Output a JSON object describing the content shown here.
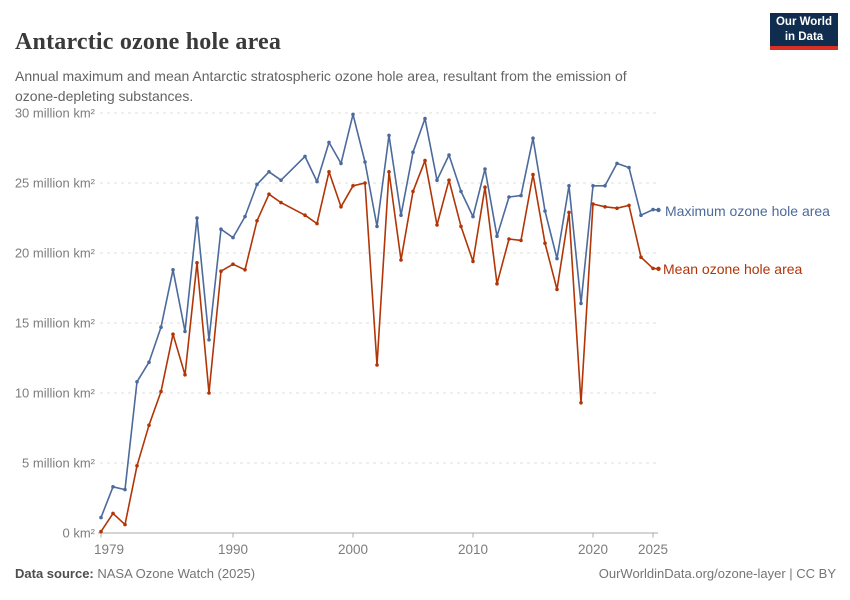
{
  "header": {
    "title": "Antarctic ozone hole area",
    "subtitle": "Annual maximum and mean Antarctic stratospheric ozone hole area, resultant from the emission of ozone-depleting substances.",
    "logo": {
      "line1": "Our World",
      "line2": "in Data",
      "bg_color": "#102D50",
      "accent_color": "#D93025"
    }
  },
  "chart_data": {
    "type": "line",
    "title": "Antarctic ozone hole area",
    "xlabel": "",
    "ylabel": "ozone hole area",
    "xlim": [
      1979,
      2025
    ],
    "ylim": [
      0,
      30
    ],
    "grid": "horizontal-dashed",
    "legend_position": "right-of-line-ends",
    "x": [
      1979,
      1980,
      1981,
      1982,
      1983,
      1984,
      1985,
      1986,
      1987,
      1988,
      1989,
      1990,
      1991,
      1992,
      1993,
      1994,
      1995,
      1996,
      1997,
      1998,
      1999,
      2000,
      2001,
      2002,
      2003,
      2004,
      2005,
      2006,
      2007,
      2008,
      2009,
      2010,
      2011,
      2012,
      2013,
      2014,
      2015,
      2016,
      2017,
      2018,
      2019,
      2020,
      2021,
      2022,
      2023,
      2024,
      2025
    ],
    "series": [
      {
        "name": "Maximum ozone hole area",
        "color": "#4C6A9C",
        "unit": "million km²",
        "values": [
          1.1,
          3.3,
          3.1,
          10.8,
          12.2,
          14.7,
          18.8,
          14.4,
          22.5,
          13.8,
          21.7,
          21.1,
          22.6,
          24.9,
          25.8,
          25.2,
          null,
          26.9,
          25.1,
          27.9,
          26.4,
          29.9,
          26.5,
          21.9,
          28.4,
          22.7,
          27.2,
          29.6,
          25.2,
          27.0,
          24.4,
          22.6,
          26.0,
          21.2,
          24.0,
          24.1,
          28.2,
          23.0,
          19.6,
          24.8,
          16.4,
          24.8,
          24.8,
          26.4,
          26.1,
          22.7,
          23.1
        ]
      },
      {
        "name": "Mean ozone hole area",
        "color": "#B13507",
        "unit": "million km²",
        "values": [
          0.1,
          1.4,
          0.6,
          4.8,
          7.7,
          10.1,
          14.2,
          11.3,
          19.3,
          10.0,
          18.7,
          19.2,
          18.8,
          22.3,
          24.2,
          23.6,
          null,
          22.7,
          22.1,
          25.8,
          23.3,
          24.8,
          25.0,
          12.0,
          25.8,
          19.5,
          24.4,
          26.6,
          22.0,
          25.2,
          21.9,
          19.4,
          24.7,
          17.8,
          21.0,
          20.9,
          25.6,
          20.7,
          17.4,
          22.9,
          9.3,
          23.5,
          23.3,
          23.2,
          23.4,
          19.7,
          18.9
        ]
      }
    ],
    "yticks": [
      {
        "value": 0,
        "label": "0 km²"
      },
      {
        "value": 5,
        "label": "5 million km²"
      },
      {
        "value": 10,
        "label": "10 million km²"
      },
      {
        "value": 15,
        "label": "15 million km²"
      },
      {
        "value": 20,
        "label": "20 million km²"
      },
      {
        "value": 25,
        "label": "25 million km²"
      },
      {
        "value": 30,
        "label": "30 million km²"
      }
    ],
    "xticks": [
      1979,
      1990,
      2000,
      2010,
      2020,
      2025
    ]
  },
  "footer": {
    "source_label": "Data source:",
    "source_value": " NASA Ozone Watch (2025)",
    "right_text": "OurWorldinData.org/ozone-layer | CC BY"
  }
}
